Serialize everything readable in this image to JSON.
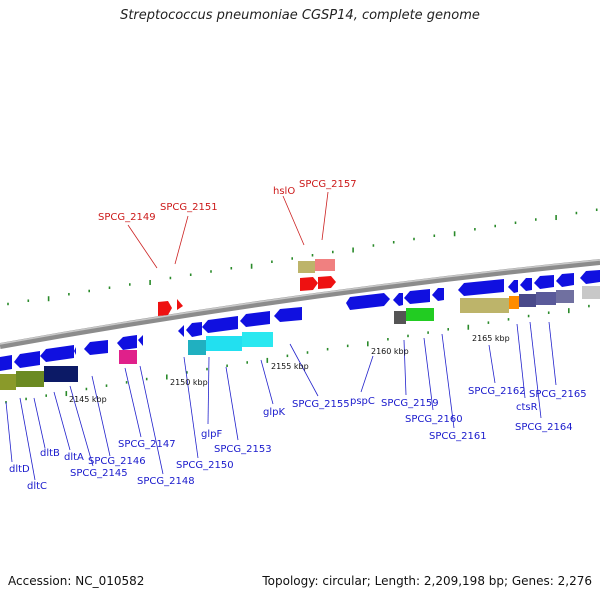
{
  "title": "Streptococcus pneumoniae CGSP14, complete genome",
  "footer": {
    "accession": "Accession: NC_010582",
    "stats": "Topology: circular; Length: 2,209,198 bp; Genes: 2,276"
  },
  "colors": {
    "backbone": "#8a8a8a",
    "gene_forward": "#2222dd",
    "gene_reverse": "#ee1111",
    "scale_tick": "#2a8a2a"
  },
  "scale_labels": [
    "2145 kbp",
    "2150 kbp",
    "2155 kbp",
    "2160 kbp",
    "2165 kbp"
  ],
  "red_labels": [
    "SPCG_2149",
    "SPCG_2151",
    "hslO",
    "SPCG_2157"
  ],
  "blue_labels": [
    "dltD",
    "dltC",
    "dltB",
    "dltA",
    "SPCG_2145",
    "SPCG_2146",
    "SPCG_2147",
    "SPCG_2148",
    "SPCG_2150",
    "glpF",
    "SPCG_2153",
    "glpK",
    "SPCG_2155",
    "pspC",
    "SPCG_2159",
    "SPCG_2160",
    "SPCG_2161",
    "SPCG_2162",
    "ctsR",
    "SPCG_2164",
    "SPCG_2165"
  ]
}
